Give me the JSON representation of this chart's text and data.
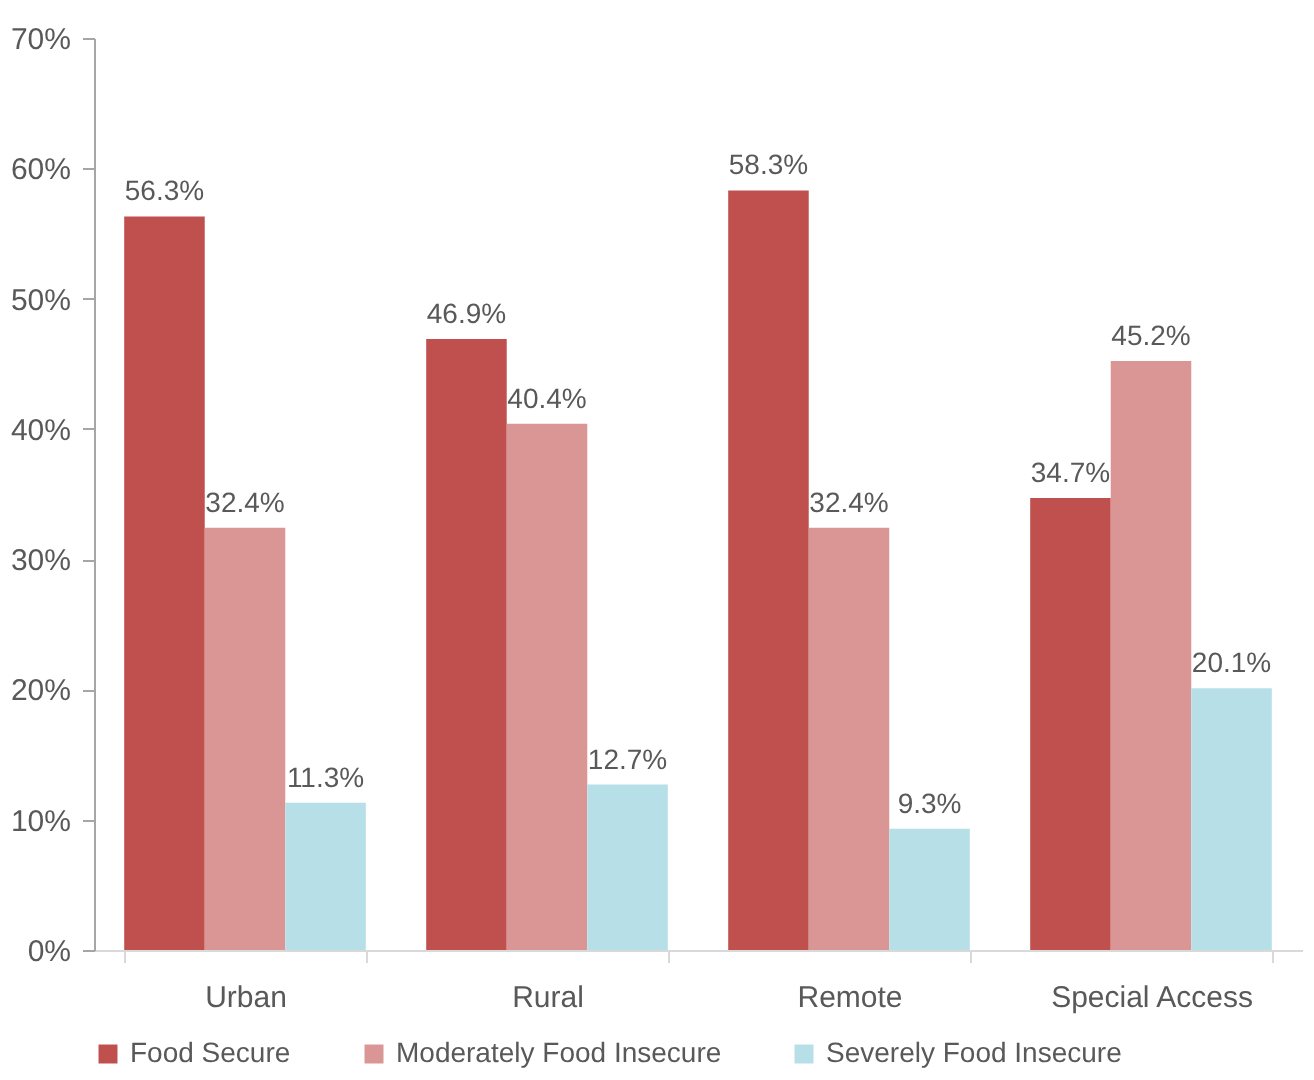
{
  "chart_data": {
    "type": "bar",
    "categories": [
      "Urban",
      "Rural",
      "Remote",
      "Special Access"
    ],
    "series": [
      {
        "name": "Food Secure",
        "color": "#c0504d",
        "values": [
          56.3,
          46.9,
          58.3,
          34.7
        ],
        "value_labels": [
          "56.3%",
          "46.9%",
          "58.3%",
          "34.7%"
        ]
      },
      {
        "name": "Moderately Food Insecure",
        "color": "#d99694",
        "values": [
          32.4,
          40.4,
          32.4,
          45.2
        ],
        "value_labels": [
          "32.4%",
          "40.4%",
          "32.4%",
          "45.2%"
        ]
      },
      {
        "name": "Severely Food Insecure",
        "color": "#b7dfe8",
        "values": [
          11.3,
          12.7,
          9.3,
          20.1
        ],
        "value_labels": [
          "11.3%",
          "12.7%",
          "9.3%",
          "20.1%"
        ]
      }
    ],
    "ylim": [
      0,
      70
    ],
    "yticks": [
      {
        "value": 0,
        "label": "0%"
      },
      {
        "value": 10,
        "label": "10%"
      },
      {
        "value": 20,
        "label": "20%"
      },
      {
        "value": 30,
        "label": "30%"
      },
      {
        "value": 40,
        "label": "40%"
      },
      {
        "value": 50,
        "label": "50%"
      },
      {
        "value": 60,
        "label": "60%"
      },
      {
        "value": 70,
        "label": "70%"
      }
    ],
    "legend": "bottom"
  }
}
